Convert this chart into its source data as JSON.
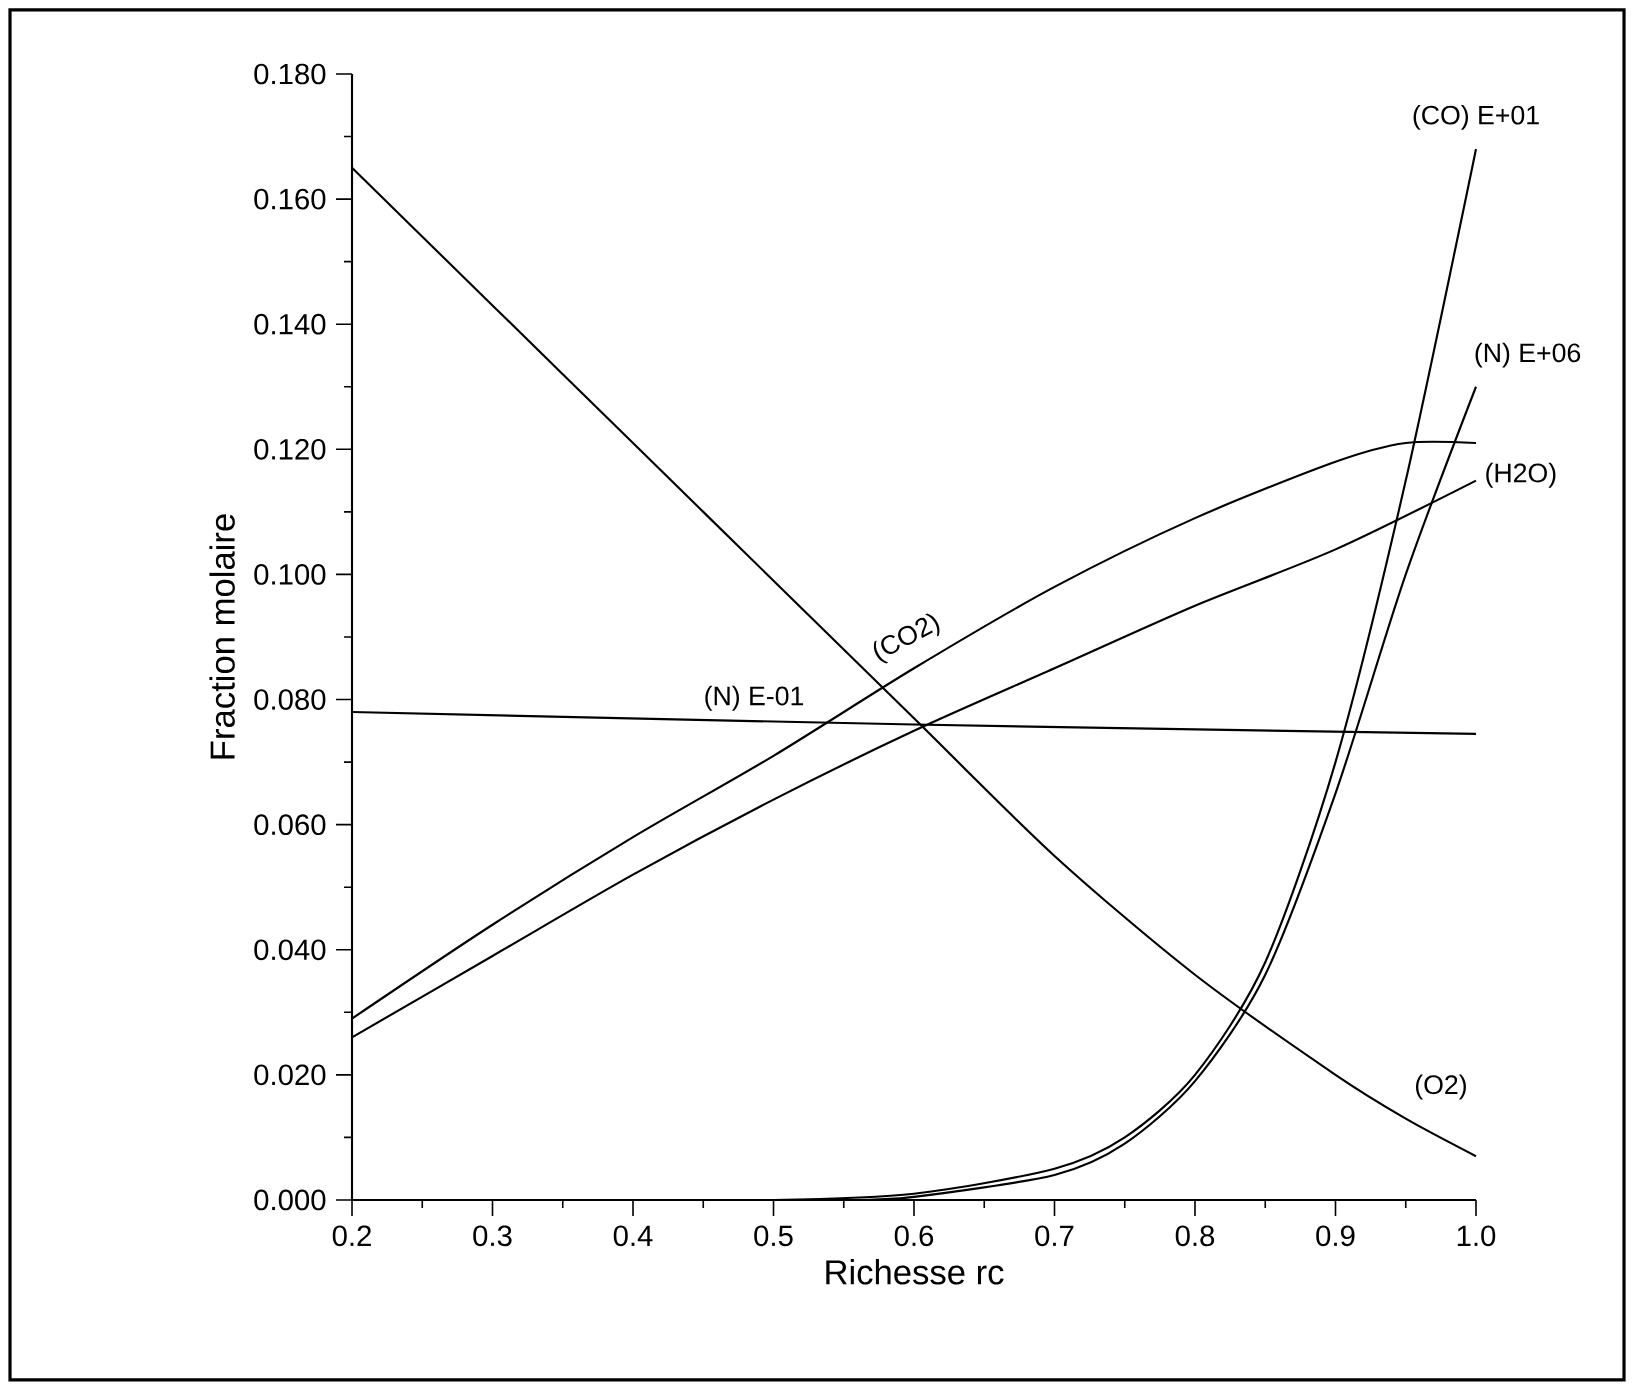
{
  "chart_data": {
    "type": "line",
    "xlabel": "Richesse rc",
    "ylabel": "Fraction molaire",
    "xlim": [
      0.2,
      1.0
    ],
    "ylim": [
      0,
      0.18
    ],
    "xticks": [
      {
        "value": 0.2,
        "label": "0.2"
      },
      {
        "value": 0.3,
        "label": "0.3"
      },
      {
        "value": 0.4,
        "label": "0.4"
      },
      {
        "value": 0.5,
        "label": "0.5"
      },
      {
        "value": 0.6,
        "label": "0.6"
      },
      {
        "value": 0.7,
        "label": "0.7"
      },
      {
        "value": 0.8,
        "label": "0.8"
      },
      {
        "value": 0.9,
        "label": "0.9"
      },
      {
        "value": 1.0,
        "label": "1.0"
      }
    ],
    "yticks": [
      {
        "value": 0,
        "label": "0.000"
      },
      {
        "value": 0.02,
        "label": "0.020"
      },
      {
        "value": 0.04,
        "label": "0.040"
      },
      {
        "value": 0.06,
        "label": "0.060"
      },
      {
        "value": 0.08,
        "label": "0.080"
      },
      {
        "value": 0.1,
        "label": "0.100"
      },
      {
        "value": 0.12,
        "label": "0.120"
      },
      {
        "value": 0.14,
        "label": "0.140"
      },
      {
        "value": 0.16,
        "label": "0.160"
      },
      {
        "value": 0.18,
        "label": "0.180"
      }
    ],
    "grid": false,
    "legend": false,
    "marker": "none",
    "line_style": "solid",
    "series": [
      {
        "name": "(O2)",
        "color": "#000000",
        "x": [
          0.2,
          0.3,
          0.4,
          0.5,
          0.6,
          0.7,
          0.8,
          0.9,
          0.95,
          1.0
        ],
        "values": [
          0.165,
          0.143,
          0.121,
          0.099,
          0.077,
          0.055,
          0.036,
          0.02,
          0.013,
          0.007
        ]
      },
      {
        "name": "(CO2)",
        "color": "#000000",
        "x": [
          0.2,
          0.3,
          0.4,
          0.5,
          0.6,
          0.7,
          0.8,
          0.9,
          0.95,
          1.0
        ],
        "values": [
          0.029,
          0.044,
          0.058,
          0.071,
          0.085,
          0.098,
          0.109,
          0.118,
          0.121,
          0.121
        ]
      },
      {
        "name": "(H2O)",
        "color": "#000000",
        "x": [
          0.2,
          0.3,
          0.4,
          0.5,
          0.6,
          0.7,
          0.8,
          0.9,
          1.0
        ],
        "values": [
          0.026,
          0.039,
          0.052,
          0.064,
          0.075,
          0.085,
          0.095,
          0.104,
          0.115
        ]
      },
      {
        "name": "(N) E-01",
        "color": "#000000",
        "x": [
          0.2,
          0.6,
          1.0
        ],
        "values": [
          0.078,
          0.076,
          0.0745
        ]
      },
      {
        "name": "(CO) E+01",
        "color": "#000000",
        "x": [
          0.5,
          0.6,
          0.7,
          0.75,
          0.8,
          0.85,
          0.9,
          0.95,
          1.0
        ],
        "values": [
          0.0,
          0.001,
          0.005,
          0.01,
          0.02,
          0.038,
          0.07,
          0.115,
          0.168
        ]
      },
      {
        "name": "(N) E+06",
        "color": "#000000",
        "x": [
          0.55,
          0.6,
          0.7,
          0.75,
          0.8,
          0.85,
          0.9,
          0.95,
          1.0
        ],
        "values": [
          0.0,
          0.0005,
          0.004,
          0.009,
          0.019,
          0.036,
          0.065,
          0.1,
          0.13
        ]
      }
    ]
  }
}
